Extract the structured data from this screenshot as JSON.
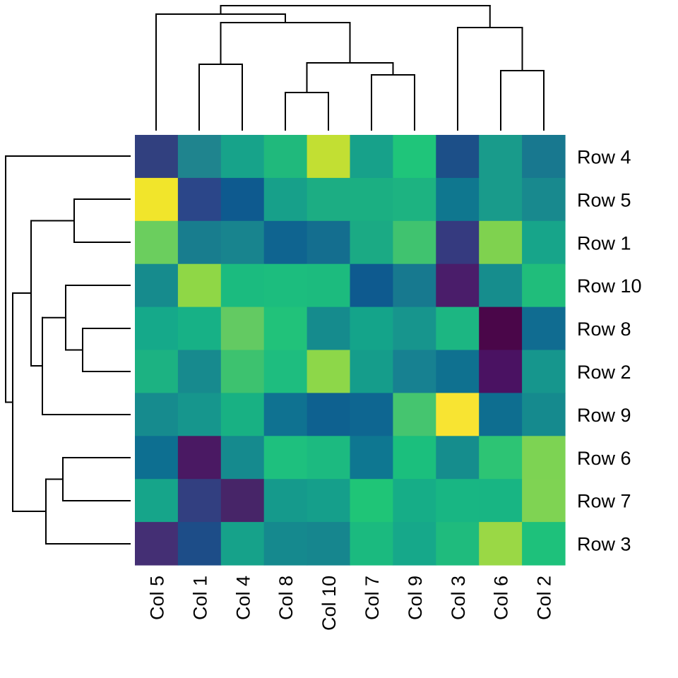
{
  "chart_data": {
    "type": "heatmap",
    "title": "",
    "colormap": "viridis",
    "legend": "none",
    "dendrograms": {
      "rows": true,
      "columns": true
    },
    "columns": [
      "Col 5",
      "Col 1",
      "Col 4",
      "Col 8",
      "Col 10",
      "Col 7",
      "Col 9",
      "Col 3",
      "Col 6",
      "Col 2"
    ],
    "rows": [
      "Row 4",
      "Row 5",
      "Row 1",
      "Row 10",
      "Row 8",
      "Row 2",
      "Row 9",
      "Row 6",
      "Row 7",
      "Row 3"
    ],
    "cell_colors": [
      [
        "#31407f",
        "#1f848e",
        "#17a38a",
        "#20b97c",
        "#c2df33",
        "#17a18a",
        "#1fc57a",
        "#1c4f88",
        "#199b8b",
        "#18788f"
      ],
      [
        "#f1e52b",
        "#2b4689",
        "#0e5a8f",
        "#17a08a",
        "#1cad83",
        "#1baf82",
        "#1db381",
        "#0f778f",
        "#199b8b",
        "#18898e"
      ],
      [
        "#6bce5e",
        "#187d8e",
        "#18848e",
        "#0f6490",
        "#146e8f",
        "#1baa84",
        "#40c36f",
        "#353a7f",
        "#7fd24f",
        "#17a58a"
      ],
      [
        "#168b8d",
        "#8fd746",
        "#1bbb7f",
        "#1cbd7e",
        "#1cbb7e",
        "#0e5a8f",
        "#17798f",
        "#4a1d6a",
        "#168d8d",
        "#20bd7b"
      ],
      [
        "#15a98a",
        "#17b186",
        "#63ca62",
        "#21c27a",
        "#158b8d",
        "#14a48a",
        "#17958d",
        "#1cb682",
        "#4a0649",
        "#106c91"
      ],
      [
        "#1cb282",
        "#178a8e",
        "#3dc26f",
        "#1ebd7f",
        "#8dd749",
        "#159d8b",
        "#178191",
        "#0f7190",
        "#4a1262",
        "#16968d"
      ],
      [
        "#168b8e",
        "#16968d",
        "#18b183",
        "#0f7291",
        "#0e6190",
        "#0e6691",
        "#45c56f",
        "#f8e432",
        "#0e6e90",
        "#158a8e"
      ],
      [
        "#0d6f91",
        "#4a1963",
        "#158a8e",
        "#1ec07e",
        "#1cba80",
        "#0e7791",
        "#1bbf7d",
        "#158d8d",
        "#2dc474",
        "#7dd353"
      ],
      [
        "#16a58a",
        "#323f80",
        "#472568",
        "#159a8c",
        "#159f8b",
        "#1fc577",
        "#16ad87",
        "#18b683",
        "#18b583",
        "#7fd353"
      ],
      [
        "#442f74",
        "#1d4d88",
        "#16a28a",
        "#15898e",
        "#16868e",
        "#1bba7f",
        "#16a88a",
        "#1fbb7d",
        "#9ad845",
        "#1ec17b"
      ]
    ]
  }
}
